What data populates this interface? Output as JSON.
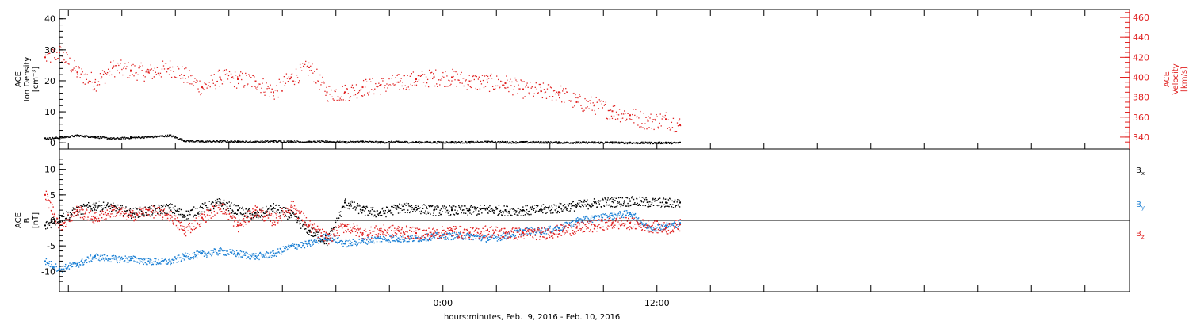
{
  "chart_data": [
    {
      "type": "scatter",
      "panel": "plasma",
      "left_axis_label": [
        "ACE",
        "Ion Density",
        "[cm⁻³]"
      ],
      "right_axis_label": [
        "ACE",
        "Velocity",
        "[km/s]"
      ],
      "left_ticks": [
        "0",
        "10",
        "20",
        "30",
        "40"
      ],
      "right_ticks": [
        "340",
        "360",
        "380",
        "400",
        "420",
        "440",
        "460"
      ],
      "ylim_left": [
        -2,
        43
      ],
      "ylim_right": [
        328,
        468
      ],
      "right_axis_color": "#e02020",
      "series": [
        {
          "name": "Ion Density",
          "axis": "left",
          "color": "#000000",
          "x_hours": [
            -22.3,
            -21.5,
            -20.5,
            -19.5,
            -18.5,
            -17.5,
            -16.5,
            -15.3,
            -14.5,
            -13.5,
            -12.5,
            -11.5,
            -10.5,
            -9.5,
            -8.5,
            -7.5,
            -6.5,
            -5.5,
            -4.5,
            -3.5,
            -2.5,
            -1.5,
            -0.5,
            0.5,
            1.5,
            2.5,
            3.5,
            4.5,
            5.5,
            6.5,
            7.5,
            8.5,
            9.5,
            10.5,
            11.5,
            12.5,
            13.3
          ],
          "values": [
            1.5,
            1.8,
            2.5,
            2.0,
            1.5,
            1.8,
            2.0,
            2.5,
            0.8,
            0.5,
            0.6,
            0.5,
            0.4,
            0.6,
            0.5,
            0.4,
            0.5,
            0.3,
            0.5,
            0.3,
            0.4,
            0.3,
            0.3,
            0.3,
            0.3,
            0.4,
            0.3,
            0.3,
            0.3,
            0.2,
            0.2,
            0.2,
            0.2,
            0.1,
            0.1,
            0.1,
            0.1
          ]
        },
        {
          "name": "Velocity",
          "axis": "right",
          "color": "#e02020",
          "x_hours": [
            -22.3,
            -21.5,
            -20.5,
            -19.5,
            -18.5,
            -17.5,
            -16.5,
            -15.3,
            -14.5,
            -13.5,
            -12.5,
            -11.5,
            -10.5,
            -9.5,
            -8.5,
            -7.5,
            -6.5,
            -5.5,
            -4.5,
            -3.5,
            -2.5,
            -1.5,
            -0.5,
            0.5,
            1.5,
            2.5,
            3.5,
            4.5,
            5.5,
            6.5,
            7.5,
            8.5,
            9.5,
            10.5,
            11.5,
            12.5,
            13.3
          ],
          "values": [
            420,
            425,
            405,
            395,
            410,
            407,
            405,
            410,
            402,
            390,
            400,
            398,
            396,
            385,
            400,
            410,
            385,
            385,
            390,
            392,
            395,
            398,
            400,
            400,
            396,
            395,
            394,
            388,
            386,
            385,
            375,
            372,
            366,
            362,
            356,
            358,
            352
          ]
        }
      ]
    },
    {
      "type": "scatter",
      "panel": "magnetic-field",
      "left_axis_label": [
        "ACE",
        "B",
        "[nT]"
      ],
      "left_ticks": [
        "-10",
        "-5",
        "0",
        "5",
        "10"
      ],
      "ylim": [
        -14,
        14
      ],
      "x_tick_labels": [
        "0:00",
        "12:00"
      ],
      "x_axis_label": "hours:minutes, Feb.  9, 2016 - Feb. 10, 2016",
      "x_range_hours": [
        -21.5,
        38.5
      ],
      "series": [
        {
          "name": "Bx",
          "label_main": "B",
          "label_sub": "x",
          "color": "#000000",
          "x_hours": [
            -22.3,
            -21.5,
            -20.5,
            -19.5,
            -18.5,
            -17.5,
            -16.5,
            -15.3,
            -14.5,
            -13.5,
            -12.5,
            -11.5,
            -10.5,
            -9.5,
            -8.5,
            -7.5,
            -6.5,
            -5.5,
            -4.5,
            -3.5,
            -2.5,
            -1.5,
            -0.5,
            0.5,
            1.5,
            2.5,
            3.5,
            4.5,
            5.5,
            6.5,
            7.5,
            8.5,
            9.5,
            10.5,
            11.5,
            12.5,
            13.3
          ],
          "values": [
            -1.0,
            0.5,
            2.0,
            3.0,
            2.5,
            1.5,
            2.0,
            2.5,
            1.0,
            2.5,
            3.5,
            2.0,
            1.0,
            2.5,
            1.0,
            -2.0,
            -4.0,
            3.5,
            2.0,
            1.5,
            2.5,
            2.5,
            2.0,
            2.0,
            2.0,
            2.2,
            2.0,
            2.0,
            2.2,
            2.5,
            3.0,
            3.5,
            3.7,
            3.8,
            3.6,
            3.5,
            3.5
          ]
        },
        {
          "name": "By",
          "label_main": "B",
          "label_sub": "y",
          "color": "#1a7fd4",
          "x_hours": [
            -22.3,
            -21.5,
            -20.5,
            -19.5,
            -18.5,
            -17.5,
            -16.5,
            -15.3,
            -14.5,
            -13.5,
            -12.5,
            -11.5,
            -10.5,
            -9.5,
            -8.5,
            -7.5,
            -6.5,
            -5.5,
            -4.5,
            -3.5,
            -2.5,
            -1.5,
            -0.5,
            0.5,
            1.5,
            2.5,
            3.5,
            4.5,
            5.5,
            6.5,
            7.5,
            8.5,
            9.5,
            10.5,
            11.5,
            12.5,
            13.3
          ],
          "values": [
            -8.0,
            -9.5,
            -8.5,
            -7.0,
            -7.5,
            -7.5,
            -8.0,
            -8.0,
            -7.0,
            -6.5,
            -6.0,
            -6.5,
            -7.0,
            -6.5,
            -5.0,
            -4.5,
            -3.0,
            -4.5,
            -4.0,
            -3.5,
            -3.5,
            -3.5,
            -3.0,
            -3.0,
            -3.0,
            -3.5,
            -3.0,
            -2.0,
            -2.0,
            -1.5,
            0.0,
            0.5,
            1.0,
            1.5,
            -1.5,
            -1.0,
            -0.5
          ]
        },
        {
          "name": "Bz",
          "label_main": "B",
          "label_sub": "z",
          "color": "#e02020",
          "x_hours": [
            -22.3,
            -21.5,
            -20.5,
            -19.5,
            -18.5,
            -17.5,
            -16.5,
            -15.3,
            -14.5,
            -13.5,
            -12.5,
            -11.5,
            -10.5,
            -9.5,
            -8.5,
            -7.5,
            -6.5,
            -5.5,
            -4.5,
            -3.5,
            -2.5,
            -1.5,
            -0.5,
            0.5,
            1.5,
            2.5,
            3.5,
            4.5,
            5.5,
            6.5,
            7.5,
            8.5,
            9.5,
            10.5,
            11.5,
            12.5,
            13.3
          ],
          "values": [
            5.0,
            -1.0,
            2.0,
            0.5,
            2.0,
            1.0,
            2.0,
            1.0,
            -2.0,
            0.5,
            3.0,
            -1.0,
            2.0,
            0.0,
            3.0,
            -1.0,
            -3.5,
            -1.0,
            -2.5,
            -2.0,
            -2.0,
            -2.5,
            -2.5,
            -2.0,
            -2.5,
            -2.0,
            -2.5,
            -2.5,
            -2.5,
            -2.0,
            -1.5,
            -1.0,
            -0.5,
            -0.5,
            -1.0,
            -1.5,
            -0.8
          ]
        }
      ]
    }
  ]
}
